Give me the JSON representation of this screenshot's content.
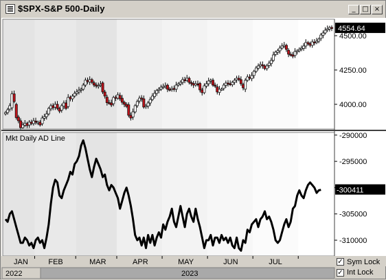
{
  "window": {
    "title": "$SPX-S&P 500-Daily",
    "minimize_glyph": "_",
    "maximize_glyph": "□",
    "close_glyph": "×"
  },
  "footer": {
    "sym_lock_label": "Sym Lock",
    "int_lock_label": "Int Lock",
    "sym_lock_checked": true,
    "int_lock_checked": true,
    "year_left": "2022",
    "year_main": "2023"
  },
  "colors": {
    "up_candle": "#ffffff",
    "down_candle": "#c0141c",
    "line": "#000000",
    "shade_dark": "#e4e4e4",
    "shade_light": "#fbfbfb"
  },
  "chart_data": [
    {
      "type": "candlestick",
      "title": "$SPX-S&P 500-Daily",
      "last_value_label": "4554.64",
      "y_ticks": [
        "4500.00",
        "4250.00",
        "4000.00"
      ],
      "y_tick_values": [
        4500,
        4250,
        4000
      ],
      "ylim": [
        3820,
        4620
      ],
      "x_tick_labels": [
        "JAN",
        "FEB",
        "MAR",
        "APR",
        "MAY",
        "JUN",
        "JUL"
      ],
      "series": [
        {
          "close": [
            3940,
            3960,
            3990,
            4076,
            4020,
            3903,
            3880,
            3830,
            3850,
            3861,
            3845,
            3870,
            3860,
            3880,
            3870,
            3870,
            3850,
            3900,
            3910,
            3930,
            3970,
            3990,
            3975,
            4000,
            3970,
            3950,
            3990,
            4010,
            3970,
            4050,
            4040,
            4060,
            4080,
            4090,
            4103,
            4110,
            4140,
            4176,
            4165,
            4180,
            4160,
            4140,
            4135,
            4137,
            4146,
            4090,
            4060,
            4012,
            4010,
            3995,
            4050,
            4045,
            4070,
            4040,
            4015,
            4000,
            3985,
            3920,
            3900,
            3945,
            3990,
            4020,
            4045,
            4040,
            3980,
            3990,
            4010,
            4035,
            4060,
            4080,
            4100,
            4110,
            4125,
            4130,
            4135,
            4110,
            4105,
            4115,
            4110,
            4140,
            4150,
            4160,
            4180,
            4175,
            4190,
            4160,
            4150,
            4140,
            4150,
            4145,
            4105,
            4085,
            4135,
            4150,
            4170,
            4176,
            4140,
            4135,
            4090,
            4110,
            4110,
            4140,
            4155,
            4150,
            4145,
            4160,
            4175,
            4190,
            4180,
            4150,
            4120,
            4175,
            4200,
            4190,
            4210,
            4240,
            4265,
            4280,
            4290,
            4280,
            4260,
            4280,
            4300,
            4320,
            4360,
            4380,
            4390,
            4410,
            4425,
            4430,
            4400,
            4365,
            4360,
            4350,
            4385,
            4390,
            4400,
            4410,
            4425,
            4450,
            4440,
            4430,
            4455,
            4450,
            4460,
            4475,
            4505,
            4520,
            4540,
            4550,
            4560,
            4554.64
          ]
        }
      ]
    },
    {
      "type": "line",
      "title": "Mkt Daily AD Line",
      "last_value_label": "-300411",
      "y_ticks": [
        "-290000",
        "-295000",
        "-300000",
        "-305000",
        "-310000"
      ],
      "y_tick_values": [
        -290000,
        -295000,
        -300000,
        -305000,
        -310000
      ],
      "ylim": [
        -313000,
        -289500
      ],
      "x_tick_labels": [
        "JAN",
        "FEB",
        "MAR",
        "APR",
        "MAY",
        "JUN",
        "JUL"
      ],
      "series": [
        {
          "name": "Mkt Daily AD Line",
          "values": [
            -306000,
            -306500,
            -305000,
            -304500,
            -306000,
            -307500,
            -309000,
            -310500,
            -310500,
            -309500,
            -310000,
            -311000,
            -310500,
            -311500,
            -310000,
            -309500,
            -310500,
            -310000,
            -311500,
            -309500,
            -307000,
            -303000,
            -300000,
            -298500,
            -299000,
            -301500,
            -302000,
            -300500,
            -299500,
            -298500,
            -297000,
            -297500,
            -295500,
            -295000,
            -294000,
            -292000,
            -291000,
            -292500,
            -294500,
            -296500,
            -298000,
            -296000,
            -294500,
            -295500,
            -296500,
            -298000,
            -297500,
            -299500,
            -300500,
            -299500,
            -300000,
            -301000,
            -302000,
            -304000,
            -302500,
            -301000,
            -300000,
            -301500,
            -303500,
            -306000,
            -309000,
            -310000,
            -309500,
            -311000,
            -309500,
            -311500,
            -309000,
            -310500,
            -309000,
            -311000,
            -309500,
            -308500,
            -309500,
            -307000,
            -308000,
            -306500,
            -305500,
            -304000,
            -306500,
            -307500,
            -305500,
            -303500,
            -305500,
            -307500,
            -305000,
            -304000,
            -305500,
            -306500,
            -304000,
            -306000,
            -307500,
            -309500,
            -311500,
            -310000,
            -310000,
            -309000,
            -311000,
            -309500,
            -309500,
            -310500,
            -309000,
            -310000,
            -309500,
            -310500,
            -309500,
            -311000,
            -311500,
            -309500,
            -311500,
            -312000,
            -310000,
            -310500,
            -308000,
            -308500,
            -307000,
            -306500,
            -306000,
            -307500,
            -306000,
            -305500,
            -304500,
            -306000,
            -305500,
            -306500,
            -308000,
            -310000,
            -310500,
            -310000,
            -308500,
            -307000,
            -306000,
            -307500,
            -306500,
            -304000,
            -303500,
            -301500,
            -300500,
            -301500,
            -302000,
            -300500,
            -299500,
            -299000,
            -299500,
            -300000,
            -301000,
            -300500,
            -300411
          ]
        }
      ]
    }
  ]
}
